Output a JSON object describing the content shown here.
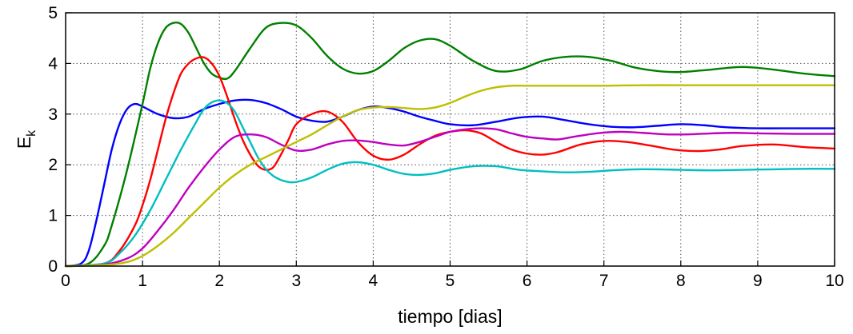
{
  "chart_data": {
    "type": "line",
    "title": "",
    "xlabel": "tiempo [dias]",
    "ylabel": "E",
    "ylabel_subscript": "k",
    "xlim": [
      0,
      10
    ],
    "ylim": [
      0,
      5
    ],
    "xticks": [
      "0",
      "1",
      "2",
      "3",
      "4",
      "5",
      "6",
      "7",
      "8",
      "9",
      "10"
    ],
    "yticks": [
      "0",
      "1",
      "2",
      "3",
      "4",
      "5"
    ],
    "grid": true,
    "series": [
      {
        "color": "#0000ff",
        "x": [
          0,
          0.2,
          0.3,
          0.4,
          0.5,
          0.6,
          0.7,
          0.8,
          0.9,
          1.0,
          1.2,
          1.4,
          1.6,
          1.8,
          2.0,
          2.2,
          2.4,
          2.6,
          2.8,
          3.0,
          3.2,
          3.4,
          3.6,
          3.8,
          4.0,
          4.2,
          4.4,
          4.6,
          4.8,
          5.0,
          5.3,
          5.6,
          5.9,
          6.2,
          6.5,
          6.8,
          7.1,
          7.4,
          7.7,
          8.0,
          8.3,
          8.6,
          9.0,
          9.5,
          10.0
        ],
        "y": [
          0,
          0.05,
          0.3,
          0.9,
          1.6,
          2.3,
          2.8,
          3.1,
          3.2,
          3.15,
          3.0,
          2.92,
          2.95,
          3.1,
          3.2,
          3.27,
          3.28,
          3.22,
          3.1,
          2.95,
          2.87,
          2.85,
          2.95,
          3.08,
          3.15,
          3.12,
          3.05,
          2.95,
          2.87,
          2.8,
          2.78,
          2.85,
          2.93,
          2.95,
          2.88,
          2.8,
          2.75,
          2.74,
          2.77,
          2.8,
          2.78,
          2.74,
          2.72,
          2.72,
          2.72
        ]
      },
      {
        "color": "#008000",
        "x": [
          0,
          0.3,
          0.5,
          0.6,
          0.8,
          1.0,
          1.1,
          1.2,
          1.3,
          1.4,
          1.5,
          1.6,
          1.7,
          1.8,
          1.9,
          2.0,
          2.1,
          2.2,
          2.4,
          2.6,
          2.8,
          3.0,
          3.2,
          3.4,
          3.6,
          3.8,
          4.0,
          4.2,
          4.4,
          4.6,
          4.8,
          5.0,
          5.3,
          5.6,
          5.9,
          6.2,
          6.5,
          6.8,
          7.1,
          7.4,
          7.7,
          8.0,
          8.4,
          8.8,
          9.2,
          9.6,
          10.0
        ],
        "y": [
          0,
          0.05,
          0.4,
          0.8,
          1.9,
          3.2,
          3.9,
          4.4,
          4.7,
          4.8,
          4.78,
          4.6,
          4.3,
          4.0,
          3.8,
          3.72,
          3.7,
          3.85,
          4.3,
          4.7,
          4.8,
          4.75,
          4.5,
          4.15,
          3.9,
          3.8,
          3.85,
          4.05,
          4.3,
          4.45,
          4.48,
          4.35,
          4.05,
          3.85,
          3.88,
          4.05,
          4.13,
          4.13,
          4.05,
          3.92,
          3.85,
          3.83,
          3.88,
          3.93,
          3.88,
          3.8,
          3.75
        ]
      },
      {
        "color": "#ff0000",
        "x": [
          0,
          0.5,
          0.7,
          0.9,
          1.0,
          1.1,
          1.2,
          1.3,
          1.4,
          1.5,
          1.6,
          1.7,
          1.8,
          1.9,
          2.0,
          2.1,
          2.2,
          2.3,
          2.4,
          2.5,
          2.6,
          2.7,
          2.8,
          2.9,
          3.0,
          3.2,
          3.4,
          3.6,
          3.8,
          4.0,
          4.2,
          4.4,
          4.6,
          4.8,
          5.0,
          5.2,
          5.4,
          5.6,
          5.8,
          6.0,
          6.2,
          6.4,
          6.7,
          7.0,
          7.3,
          7.6,
          7.9,
          8.2,
          8.5,
          8.8,
          9.2,
          9.6,
          10.0
        ],
        "y": [
          0,
          0.05,
          0.3,
          0.8,
          1.2,
          1.7,
          2.3,
          2.9,
          3.4,
          3.8,
          4.0,
          4.1,
          4.12,
          4.0,
          3.75,
          3.35,
          2.9,
          2.5,
          2.2,
          1.98,
          1.9,
          1.95,
          2.2,
          2.5,
          2.8,
          3.0,
          3.05,
          2.85,
          2.45,
          2.18,
          2.1,
          2.2,
          2.4,
          2.57,
          2.65,
          2.68,
          2.62,
          2.45,
          2.3,
          2.22,
          2.2,
          2.25,
          2.4,
          2.47,
          2.45,
          2.38,
          2.3,
          2.27,
          2.3,
          2.37,
          2.4,
          2.35,
          2.32
        ]
      },
      {
        "color": "#00bfbf",
        "x": [
          0,
          0.5,
          0.7,
          0.9,
          1.1,
          1.3,
          1.5,
          1.7,
          1.8,
          1.9,
          2.0,
          2.1,
          2.2,
          2.3,
          2.4,
          2.5,
          2.6,
          2.7,
          2.8,
          2.9,
          3.0,
          3.2,
          3.4,
          3.6,
          3.8,
          4.0,
          4.2,
          4.4,
          4.6,
          4.8,
          5.0,
          5.3,
          5.6,
          5.9,
          6.2,
          6.5,
          6.8,
          7.1,
          7.4,
          7.7,
          8.0,
          8.4,
          8.8,
          9.2,
          9.6,
          10.0
        ],
        "y": [
          0,
          0.05,
          0.25,
          0.6,
          1.1,
          1.7,
          2.3,
          2.85,
          3.1,
          3.23,
          3.27,
          3.22,
          3.05,
          2.75,
          2.45,
          2.15,
          1.92,
          1.78,
          1.7,
          1.66,
          1.66,
          1.75,
          1.9,
          2.02,
          2.05,
          2.0,
          1.9,
          1.82,
          1.8,
          1.83,
          1.9,
          1.97,
          1.97,
          1.9,
          1.87,
          1.85,
          1.86,
          1.89,
          1.91,
          1.91,
          1.9,
          1.89,
          1.9,
          1.91,
          1.92,
          1.92
        ]
      },
      {
        "color": "#bf00bf",
        "x": [
          0,
          0.5,
          0.8,
          1.0,
          1.2,
          1.4,
          1.6,
          1.8,
          2.0,
          2.2,
          2.4,
          2.6,
          2.8,
          3.0,
          3.2,
          3.4,
          3.6,
          3.8,
          4.0,
          4.2,
          4.4,
          4.6,
          4.8,
          5.0,
          5.2,
          5.4,
          5.6,
          5.8,
          6.0,
          6.2,
          6.4,
          6.6,
          6.9,
          7.2,
          7.5,
          7.8,
          8.1,
          8.4,
          8.7,
          9.0,
          9.5,
          10.0
        ],
        "y": [
          0,
          0.03,
          0.15,
          0.35,
          0.7,
          1.1,
          1.55,
          1.95,
          2.3,
          2.55,
          2.6,
          2.55,
          2.4,
          2.28,
          2.3,
          2.4,
          2.47,
          2.48,
          2.45,
          2.4,
          2.38,
          2.45,
          2.55,
          2.65,
          2.7,
          2.72,
          2.7,
          2.62,
          2.55,
          2.52,
          2.5,
          2.55,
          2.62,
          2.65,
          2.63,
          2.6,
          2.6,
          2.62,
          2.63,
          2.62,
          2.61,
          2.61
        ]
      },
      {
        "color": "#bfbf00",
        "x": [
          0,
          0.5,
          0.8,
          1.0,
          1.2,
          1.4,
          1.6,
          1.8,
          2.0,
          2.2,
          2.4,
          2.6,
          2.8,
          3.0,
          3.2,
          3.4,
          3.6,
          3.8,
          4.0,
          4.2,
          4.4,
          4.6,
          4.8,
          5.0,
          5.2,
          5.4,
          5.6,
          5.8,
          6.0,
          6.5,
          7.0,
          7.5,
          8.0,
          8.5,
          9.0,
          9.5,
          10.0
        ],
        "y": [
          0,
          0.02,
          0.08,
          0.2,
          0.4,
          0.65,
          0.95,
          1.25,
          1.55,
          1.8,
          2.0,
          2.15,
          2.3,
          2.45,
          2.6,
          2.78,
          2.95,
          3.08,
          3.13,
          3.14,
          3.12,
          3.1,
          3.13,
          3.22,
          3.35,
          3.46,
          3.53,
          3.56,
          3.56,
          3.56,
          3.56,
          3.57,
          3.57,
          3.57,
          3.57,
          3.57,
          3.57
        ]
      }
    ]
  }
}
